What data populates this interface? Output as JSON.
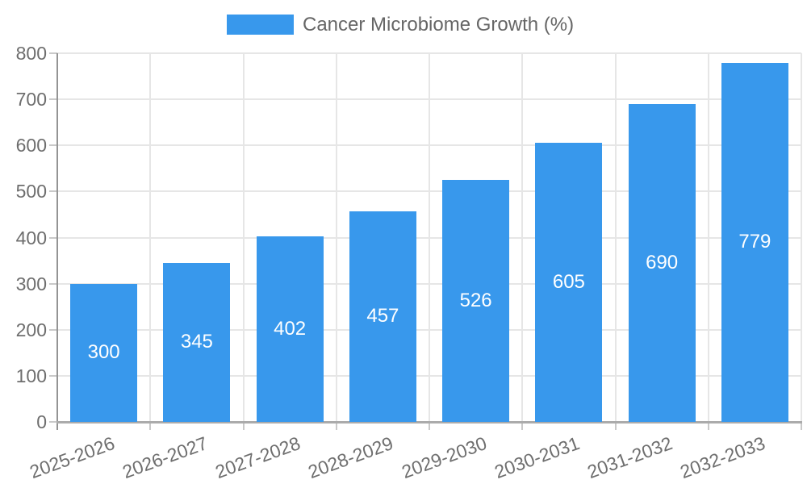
{
  "chart_data": {
    "type": "bar",
    "title": "Cancer Microbiome Growth (%)",
    "categories": [
      "2025-2026",
      "2026-2027",
      "2027-2028",
      "2028-2029",
      "2029-2030",
      "2030-2031",
      "2031-2032",
      "2032-2033"
    ],
    "values": [
      300,
      345,
      402,
      457,
      526,
      605,
      690,
      779
    ],
    "xlabel": "",
    "ylabel": "",
    "ylim": [
      0,
      800
    ],
    "yticks": [
      0,
      100,
      200,
      300,
      400,
      500,
      600,
      700,
      800
    ],
    "grid": "on",
    "legend_position": "top-center",
    "legend_entries": [
      "Cancer Microbiome Growth (%)"
    ],
    "bar_value_labels_inside": true
  },
  "legend": {
    "label": "Cancer Microbiome Growth (%)"
  },
  "colors": {
    "bar": "#3898ec",
    "bar_label_text": "#ffffff",
    "legend_text": "#666666",
    "tick_text": "#6e6e6e",
    "gridline": "#e6e6e6",
    "axis_line": "#9e9e9e"
  }
}
